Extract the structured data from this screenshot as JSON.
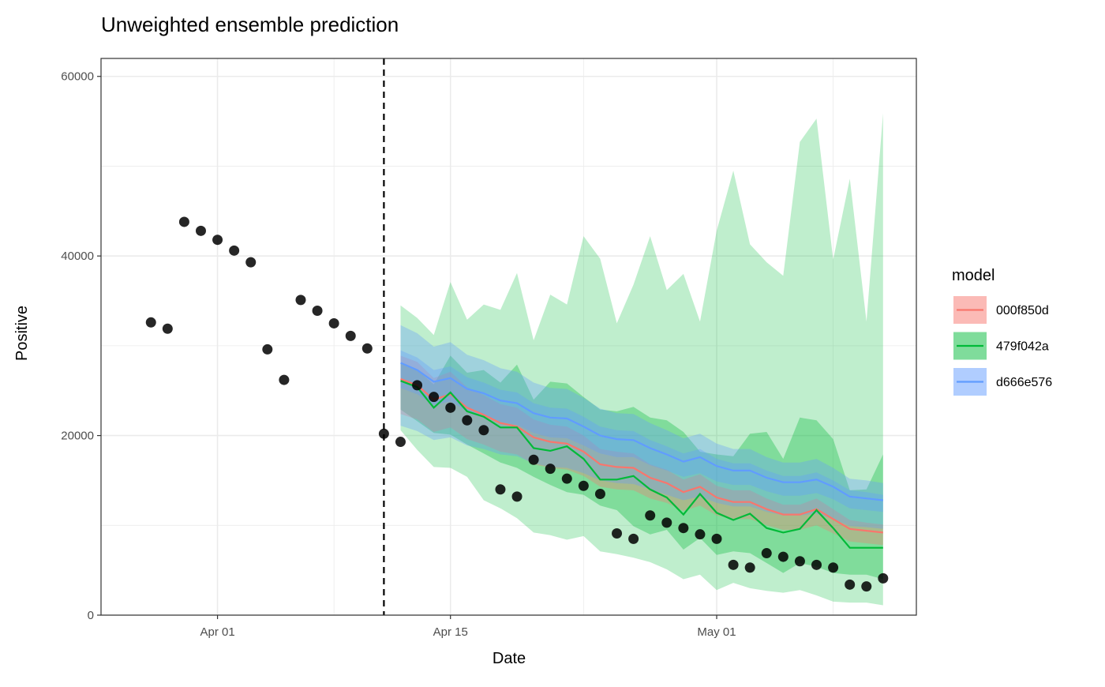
{
  "chart_data": {
    "type": "line",
    "title": "Unweighted ensemble prediction",
    "xlabel": "Date",
    "ylabel": "Positive",
    "xlim": [
      "2020-03-25",
      "2020-05-13"
    ],
    "ylim": [
      0,
      62000
    ],
    "x_ticks": [
      {
        "date": "2020-04-01",
        "label": "Apr 01"
      },
      {
        "date": "2020-04-15",
        "label": "Apr 15"
      },
      {
        "date": "2020-05-01",
        "label": "May 01"
      }
    ],
    "y_ticks": [
      0,
      20000,
      40000,
      60000
    ],
    "y_tick_labels": [
      "0",
      "20000",
      "40000",
      "60000"
    ],
    "grid": true,
    "forecast_start_line": {
      "date": "2020-04-11",
      "style": "dashed",
      "color": "#000000"
    },
    "legend": {
      "title": "model",
      "position": "right"
    },
    "observed": {
      "color": "#000000",
      "start_date": "2020-03-28",
      "dates_note": "daily",
      "values": [
        32600,
        31900,
        43800,
        42800,
        41800,
        40600,
        39300,
        29600,
        26200,
        35100,
        33900,
        32500,
        31100,
        29700,
        20200,
        19300,
        25600,
        24300,
        23100,
        21700,
        20600,
        14000,
        13200,
        17300,
        16300,
        15200,
        14400,
        13500,
        9100,
        8500,
        11100,
        10300,
        9700,
        9000,
        8500,
        5600,
        5300,
        6900,
        6500,
        6000,
        5600,
        5300,
        3400,
        3200,
        4100
      ]
    },
    "forecast_start_date": "2020-04-12",
    "series": [
      {
        "name": "000f850d",
        "color": "#F8766D",
        "median": [
          26300,
          25600,
          24000,
          24600,
          23100,
          22300,
          21400,
          21000,
          19800,
          19300,
          19100,
          18200,
          16800,
          16500,
          16400,
          15300,
          14700,
          13700,
          14300,
          13100,
          12600,
          12600,
          11800,
          11200,
          11200,
          11800,
          10700,
          9600,
          9400,
          9200
        ],
        "bands": [
          {
            "lower": [
              22400,
              21800,
              20400,
              20900,
              19600,
              19000,
              18200,
              17900,
              16800,
              16400,
              16200,
              15500,
              14300,
              14000,
              13900,
              13000,
              12500,
              11600,
              12200,
              11100,
              10700,
              10700,
              10000,
              9500,
              9500,
              10000,
              9100,
              8200,
              8000,
              7800
            ],
            "upper": [
              28900,
              28200,
              26400,
              27100,
              25400,
              24500,
              23500,
              23100,
              21800,
              21200,
              21000,
              20000,
              18500,
              18200,
              18000,
              16800,
              16200,
              15100,
              15700,
              14400,
              13900,
              13900,
              13000,
              12300,
              12300,
              13000,
              11800,
              10600,
              10300,
              10100
            ]
          }
        ]
      },
      {
        "name": "479f042a",
        "color": "#00BA38",
        "median": [
          26100,
          25400,
          23100,
          24800,
          22700,
          22100,
          20900,
          20900,
          18600,
          18300,
          18800,
          17400,
          15100,
          15100,
          15500,
          14000,
          13100,
          11200,
          13500,
          11400,
          10600,
          11300,
          9700,
          9200,
          9600,
          11700,
          9700,
          7500,
          7500,
          7500
        ],
        "bands": [
          {
            "lower": [
              20600,
              18400,
              16500,
              16400,
              15400,
              12800,
              11900,
              10800,
              9200,
              8900,
              8400,
              8800,
              7100,
              6800,
              6400,
              5900,
              5100,
              4000,
              4500,
              2800,
              3600,
              3000,
              2700,
              2500,
              2800,
              2200,
              1500,
              1400,
              1400,
              1100
            ],
            "upper": [
              34500,
              33100,
              31200,
              37100,
              32900,
              34600,
              34000,
              38100,
              30600,
              35700,
              34600,
              42200,
              39700,
              32500,
              36800,
              42200,
              36200,
              38000,
              32700,
              42800,
              49500,
              41300,
              39300,
              37800,
              52700,
              55300,
              39600,
              48600,
              32700,
              55900
            ]
          },
          {
            "lower": [
              22900,
              21600,
              20300,
              20100,
              19000,
              18000,
              17000,
              16400,
              15400,
              14500,
              13700,
              13400,
              12200,
              11700,
              9900,
              9000,
              9500,
              7300,
              8600,
              6700,
              7100,
              6900,
              5800,
              4700,
              5800,
              5400,
              4700,
              4500,
              4500,
              4000
            ],
            "upper": [
              28100,
              27300,
              25700,
              28900,
              27000,
              27300,
              25900,
              27900,
              24000,
              26000,
              25800,
              24300,
              22900,
              22700,
              23200,
              22000,
              21700,
              20400,
              18200,
              17900,
              17700,
              20200,
              20400,
              17400,
              22000,
              21700,
              19600,
              13900,
              14000,
              17900
            ]
          }
        ]
      },
      {
        "name": "d666e576",
        "color": "#619CFF",
        "median": [
          28100,
          27300,
          26000,
          26400,
          25200,
          24700,
          23900,
          23600,
          22500,
          22000,
          21900,
          21000,
          20000,
          19600,
          19500,
          18600,
          17900,
          17100,
          17600,
          16600,
          16100,
          16100,
          15300,
          14800,
          14800,
          15100,
          14300,
          13200,
          13000,
          12800
        ],
        "bands": [
          {
            "lower": [
              21100,
              20500,
              19500,
              19800,
              18900,
              18500,
              17900,
              17700,
              16900,
              16500,
              16400,
              15800,
              15000,
              14700,
              14600,
              14000,
              13400,
              12800,
              13200,
              12500,
              12100,
              12100,
              11500,
              11100,
              11100,
              11300,
              10700,
              9900,
              9800,
              9600
            ],
            "upper": [
              32300,
              31400,
              29900,
              30400,
              29000,
              28400,
              27500,
              27100,
              25900,
              25300,
              25200,
              24200,
              23000,
              22500,
              22400,
              21400,
              20600,
              19700,
              20200,
              19100,
              18500,
              18500,
              17600,
              17000,
              17000,
              17400,
              16400,
              15200,
              15000,
              14700
            ]
          },
          {
            "lower": [
              25300,
              24600,
              23400,
              23800,
              22700,
              22200,
              21500,
              21200,
              20300,
              19800,
              19700,
              18900,
              18000,
              17600,
              17600,
              16700,
              16100,
              15400,
              15800,
              14900,
              14500,
              14500,
              13800,
              13300,
              13300,
              13600,
              12900,
              11900,
              11700,
              11500
            ],
            "upper": [
              29500,
              28700,
              27300,
              27700,
              26500,
              25900,
              25100,
              24800,
              23600,
              23100,
              23000,
              22100,
              21000,
              20600,
              20500,
              19500,
              18800,
              18000,
              18500,
              17400,
              16900,
              16900,
              16100,
              15500,
              15500,
              15900,
              15000,
              13900,
              13700,
              13400
            ]
          }
        ]
      }
    ]
  }
}
